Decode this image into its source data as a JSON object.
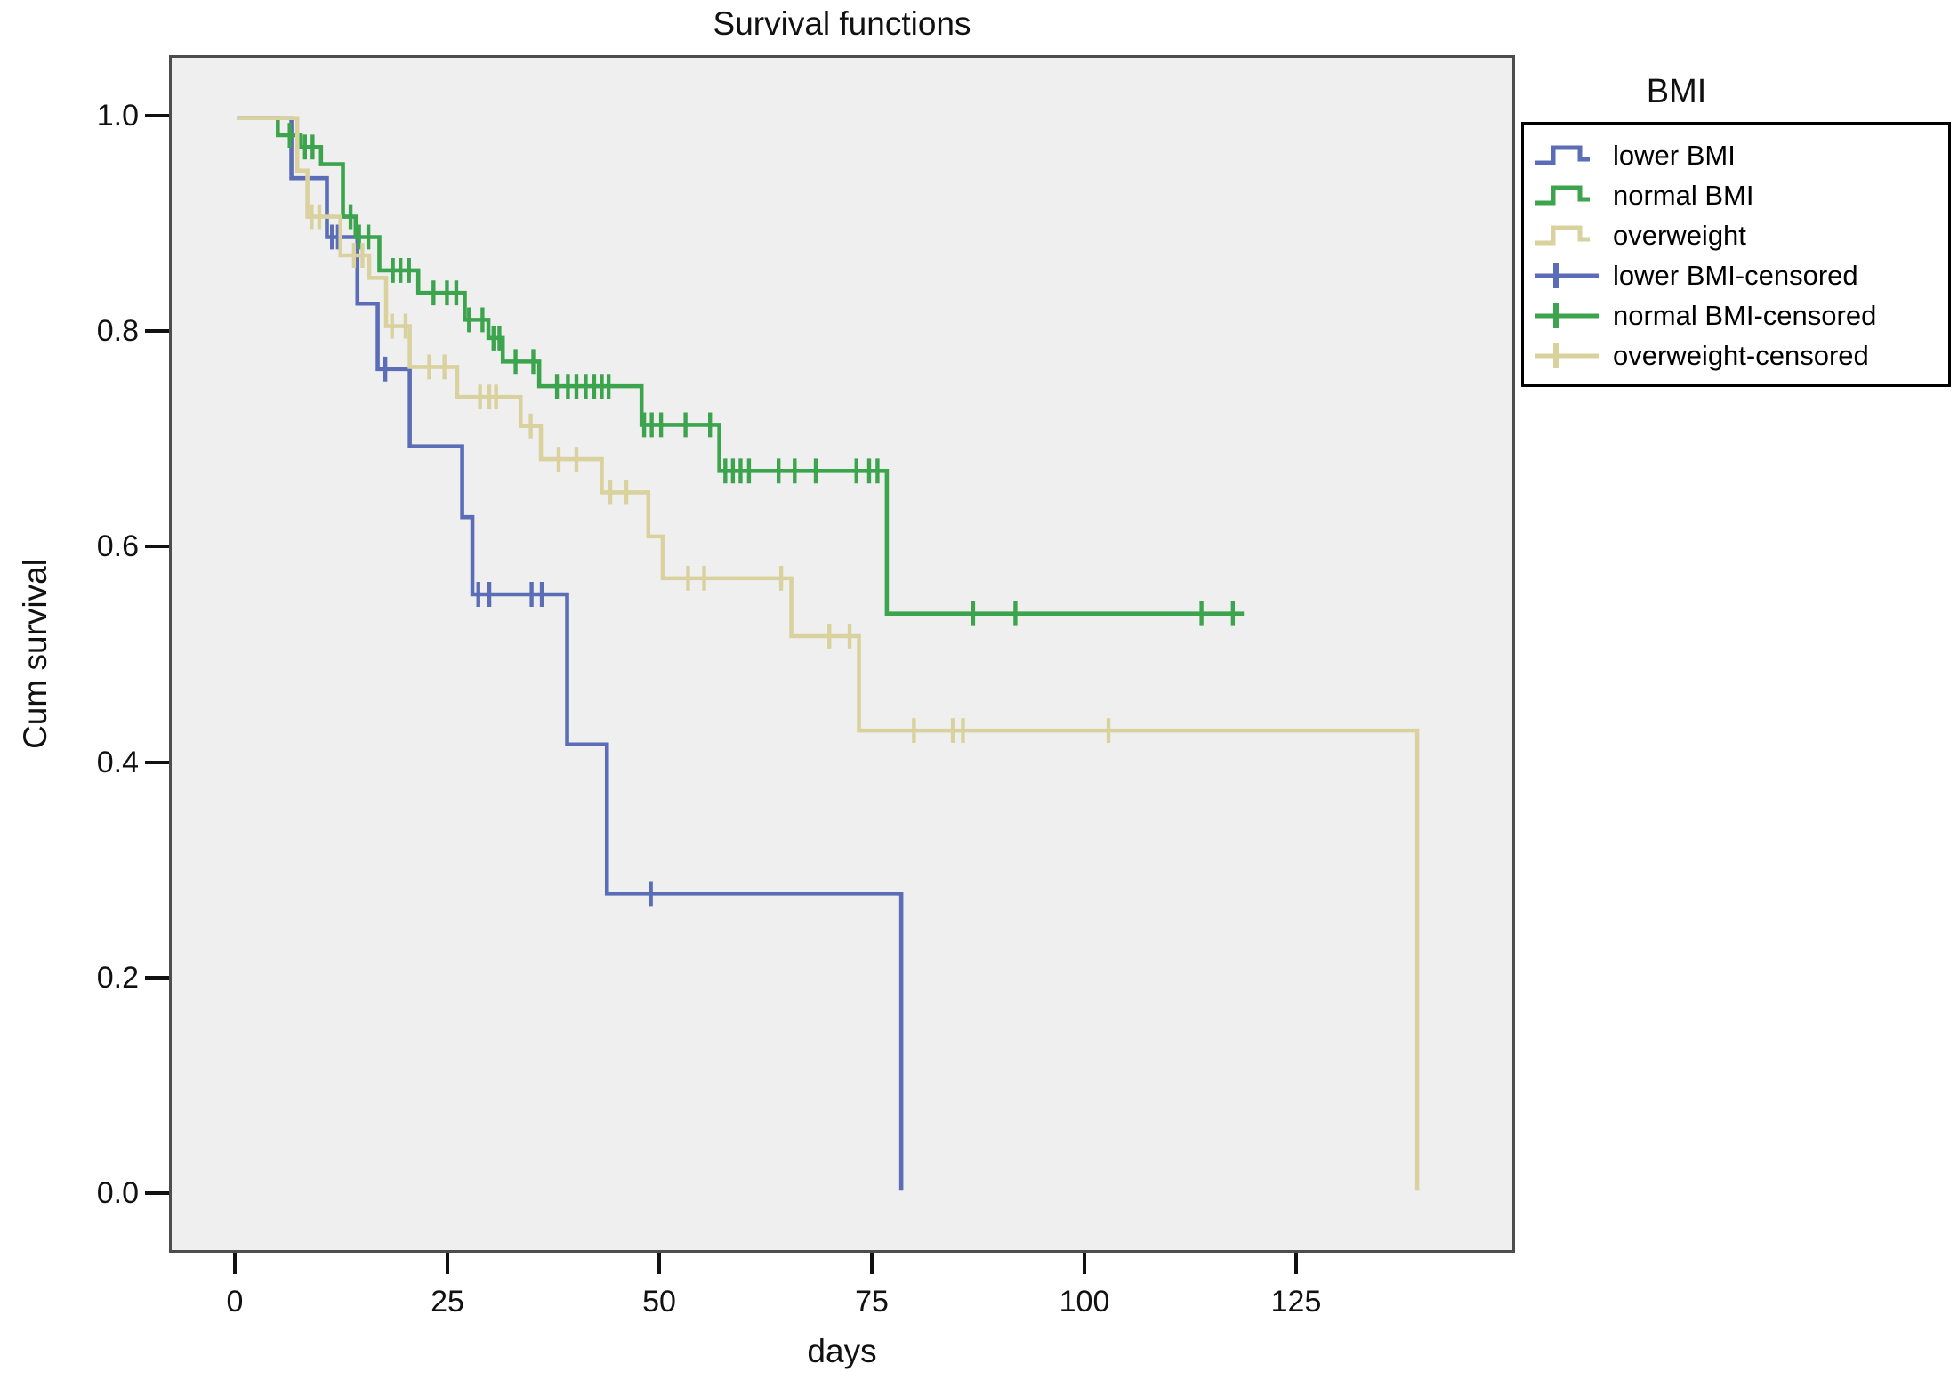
{
  "title": "Survival functions",
  "axes": {
    "x_title": "days",
    "y_title": "Cum survival"
  },
  "legend": {
    "title": "BMI",
    "items": [
      {
        "label": "lower BMI",
        "type": "step-line",
        "color": "#5b6db6"
      },
      {
        "label": "normal BMI",
        "type": "step-line",
        "color": "#3da44e"
      },
      {
        "label": "overweight",
        "type": "step-line",
        "color": "#d9d29e"
      },
      {
        "label": "lower BMI-censored",
        "type": "plus-mark",
        "color": "#5b6db6"
      },
      {
        "label": "normal BMI-censored",
        "type": "plus-mark",
        "color": "#3da44e"
      },
      {
        "label": "overweight-censored",
        "type": "plus-mark",
        "color": "#d9d29e"
      }
    ]
  },
  "chart_data": {
    "type": "line",
    "subtype": "kaplan-meier-step",
    "title": "Survival functions",
    "xlabel": "days",
    "ylabel": "Cum survival",
    "xtick_labels": [
      "0",
      "25",
      "50",
      "75",
      "100",
      "125"
    ],
    "ytick_labels": [
      "1.0",
      "0.8",
      "0.6",
      "0.4",
      "0.2",
      "0.0"
    ],
    "xticks": [
      0,
      25,
      50,
      75,
      100,
      125
    ],
    "yticks": [
      1.0,
      0.8,
      0.6,
      0.4,
      0.2,
      0.0
    ],
    "xlim": [
      -7.8,
      150.8
    ],
    "ylim": [
      -0.055,
      1.056
    ],
    "grid": false,
    "legend_position": "right",
    "plot_background": "#efefef",
    "series": [
      {
        "name": "lower BMI",
        "color": "#5b6db6",
        "start": [
          0,
          1.0
        ],
        "steps": [
          [
            6.4,
            0.944
          ],
          [
            10.6,
            0.889
          ],
          [
            14.2,
            0.827
          ],
          [
            16.6,
            0.766
          ],
          [
            20.4,
            0.694
          ],
          [
            26.6,
            0.628
          ],
          [
            27.8,
            0.556
          ],
          [
            39,
            0.416
          ],
          [
            43.7,
            0.277
          ],
          [
            78.5,
            0
          ]
        ],
        "censored": [
          [
            11.2,
            0.889
          ],
          [
            11.9,
            0.889
          ],
          [
            17.5,
            0.766
          ],
          [
            28.5,
            0.556
          ],
          [
            29.8,
            0.556
          ],
          [
            34.8,
            0.556
          ],
          [
            36,
            0.556
          ],
          [
            48.9,
            0.277
          ]
        ]
      },
      {
        "name": "normal BMI",
        "color": "#3da44e",
        "start": [
          0,
          1.0
        ],
        "steps": [
          [
            4.8,
            0.984
          ],
          [
            7.5,
            0.973
          ],
          [
            9.9,
            0.957
          ],
          [
            12.5,
            0.908
          ],
          [
            14,
            0.889
          ],
          [
            16.8,
            0.858
          ],
          [
            21.4,
            0.837
          ],
          [
            26.9,
            0.812
          ],
          [
            29.7,
            0.795
          ],
          [
            31.4,
            0.773
          ],
          [
            35.7,
            0.75
          ],
          [
            47.8,
            0.714
          ],
          [
            57,
            0.671
          ],
          [
            76.8,
            0.538
          ]
        ],
        "end_time": 119,
        "censored": [
          [
            6.2,
            0.984
          ],
          [
            8,
            0.973
          ],
          [
            8.9,
            0.973
          ],
          [
            13.4,
            0.908
          ],
          [
            14.4,
            0.889
          ],
          [
            15.5,
            0.889
          ],
          [
            18.4,
            0.858
          ],
          [
            19.3,
            0.858
          ],
          [
            20.3,
            0.858
          ],
          [
            23.2,
            0.837
          ],
          [
            24.8,
            0.837
          ],
          [
            25.9,
            0.837
          ],
          [
            27.4,
            0.812
          ],
          [
            29,
            0.812
          ],
          [
            30.3,
            0.795
          ],
          [
            31,
            0.795
          ],
          [
            32.9,
            0.773
          ],
          [
            35,
            0.773
          ],
          [
            37.8,
            0.75
          ],
          [
            39.1,
            0.75
          ],
          [
            40.1,
            0.75
          ],
          [
            41.2,
            0.75
          ],
          [
            42.2,
            0.75
          ],
          [
            43.1,
            0.75
          ],
          [
            43.9,
            0.75
          ],
          [
            48.1,
            0.714
          ],
          [
            49,
            0.714
          ],
          [
            50.1,
            0.714
          ],
          [
            53,
            0.714
          ],
          [
            55.9,
            0.714
          ],
          [
            57.7,
            0.671
          ],
          [
            58.6,
            0.671
          ],
          [
            59.5,
            0.671
          ],
          [
            60.5,
            0.671
          ],
          [
            64,
            0.671
          ],
          [
            65.9,
            0.671
          ],
          [
            68.4,
            0.671
          ],
          [
            73.2,
            0.671
          ],
          [
            74.7,
            0.671
          ],
          [
            75.7,
            0.671
          ],
          [
            87,
            0.538
          ],
          [
            92,
            0.538
          ],
          [
            114,
            0.538
          ],
          [
            117.7,
            0.538
          ]
        ]
      },
      {
        "name": "overweight",
        "color": "#d9d29e",
        "start": [
          0,
          1.0
        ],
        "steps": [
          [
            7.1,
            0.951
          ],
          [
            8.3,
            0.908
          ],
          [
            12.2,
            0.872
          ],
          [
            15.6,
            0.851
          ],
          [
            17.6,
            0.806
          ],
          [
            20.4,
            0.768
          ],
          [
            26,
            0.74
          ],
          [
            33.5,
            0.713
          ],
          [
            35.9,
            0.682
          ],
          [
            43.1,
            0.651
          ],
          [
            48.6,
            0.61
          ],
          [
            50.3,
            0.571
          ],
          [
            65.5,
            0.517
          ],
          [
            73.5,
            0.429
          ],
          [
            139.5,
            0
          ]
        ],
        "censored": [
          [
            8.8,
            0.908
          ],
          [
            9.7,
            0.908
          ],
          [
            13.8,
            0.872
          ],
          [
            14.8,
            0.872
          ],
          [
            18.3,
            0.806
          ],
          [
            19.9,
            0.806
          ],
          [
            22.7,
            0.768
          ],
          [
            24.5,
            0.768
          ],
          [
            28.7,
            0.74
          ],
          [
            29.8,
            0.74
          ],
          [
            30.6,
            0.74
          ],
          [
            34.7,
            0.713
          ],
          [
            38,
            0.682
          ],
          [
            40.1,
            0.682
          ],
          [
            44.1,
            0.651
          ],
          [
            46,
            0.651
          ],
          [
            53.3,
            0.571
          ],
          [
            55.2,
            0.571
          ],
          [
            64.3,
            0.571
          ],
          [
            70,
            0.517
          ],
          [
            72.4,
            0.517
          ],
          [
            80,
            0.429
          ],
          [
            84.6,
            0.429
          ],
          [
            85.8,
            0.429
          ],
          [
            103,
            0.429
          ]
        ]
      }
    ]
  }
}
